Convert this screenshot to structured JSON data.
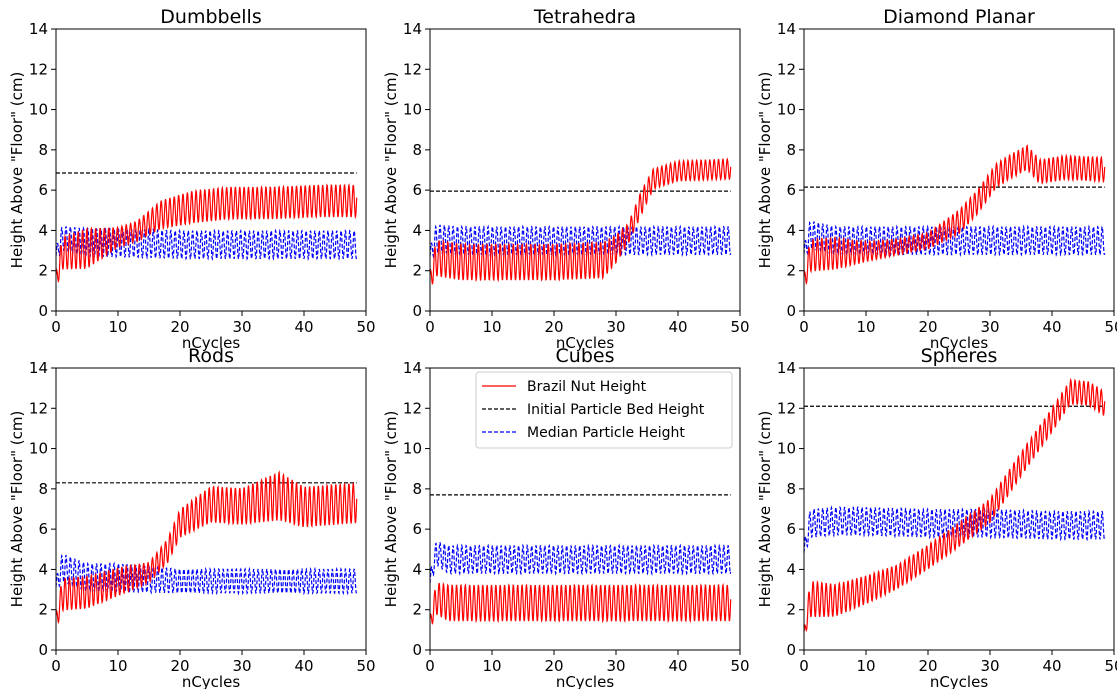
{
  "legend": {
    "entries": [
      {
        "label": "Brazil Nut Height",
        "color": "#ff0000",
        "dash": "solid"
      },
      {
        "label": "Initial Particle Bed Height",
        "color": "#000000",
        "dash": "dashed"
      },
      {
        "label": "Median Particle Height",
        "color": "#0000ff",
        "dash": "dashed"
      }
    ],
    "location": "top-right of Cubes panel"
  },
  "chart_data": [
    {
      "type": "line",
      "title": "Dumbbells",
      "xlabel": "nCycles",
      "ylabel": "Height Above \"Floor\" (cm)",
      "xlim": [
        0,
        50
      ],
      "ylim": [
        0,
        14
      ],
      "xticks": [
        0,
        10,
        20,
        30,
        40,
        50
      ],
      "yticks": [
        0,
        2,
        4,
        6,
        8,
        10,
        12,
        14
      ],
      "series": [
        {
          "name": "Initial Particle Bed Height",
          "color": "#000000",
          "dash": "dashed",
          "x": [
            0,
            48.5
          ],
          "y": [
            6.85,
            6.85
          ]
        },
        {
          "name": "Median Particle Height",
          "color": "#0000ff",
          "dash": "dashed",
          "x": [
            0,
            1,
            5,
            10,
            20,
            30,
            40,
            48.5
          ],
          "y": [
            2.6,
            3.2,
            2.9,
            2.9,
            2.8,
            2.8,
            2.8,
            2.8
          ],
          "amplitude": [
            0.3,
            0.6,
            0.7,
            0.7,
            0.7,
            0.7,
            0.7,
            0.7
          ]
        },
        {
          "name": "Brazil Nut Height",
          "color": "#ff0000",
          "dash": "solid",
          "x": [
            0,
            1,
            5,
            10,
            13,
            17,
            22,
            28,
            35,
            42,
            48.5
          ],
          "y": [
            1.2,
            2.3,
            2.4,
            3.3,
            3.6,
            4.3,
            4.6,
            4.8,
            4.8,
            4.9,
            4.9
          ],
          "amplitude": [
            0.4,
            0.8,
            1.0,
            0.5,
            0.5,
            0.7,
            0.8,
            0.8,
            0.8,
            0.8,
            0.8
          ]
        }
      ]
    },
    {
      "type": "line",
      "title": "Tetrahedra",
      "xlabel": "nCycles",
      "ylabel": "Height Above \"Floor\" (cm)",
      "xlim": [
        0,
        50
      ],
      "ylim": [
        0,
        14
      ],
      "xticks": [
        0,
        10,
        20,
        30,
        40,
        50
      ],
      "yticks": [
        0,
        2,
        4,
        6,
        8,
        10,
        12,
        14
      ],
      "series": [
        {
          "name": "Initial Particle Bed Height",
          "color": "#000000",
          "dash": "dashed",
          "x": [
            0,
            48.5
          ],
          "y": [
            5.95,
            5.95
          ]
        },
        {
          "name": "Median Particle Height",
          "color": "#0000ff",
          "dash": "dashed",
          "x": [
            0,
            1,
            5,
            10,
            20,
            30,
            40,
            48.5
          ],
          "y": [
            2.6,
            3.1,
            3.0,
            3.0,
            3.0,
            3.0,
            3.0,
            3.0
          ],
          "amplitude": [
            0.3,
            0.7,
            0.7,
            0.7,
            0.7,
            0.7,
            0.7,
            0.7
          ]
        },
        {
          "name": "Brazil Nut Height",
          "color": "#ff0000",
          "dash": "solid",
          "x": [
            0,
            1,
            5,
            10,
            20,
            28,
            30,
            32,
            34,
            36,
            40,
            48.5
          ],
          "y": [
            1.2,
            2.0,
            1.8,
            1.8,
            1.8,
            1.9,
            2.6,
            3.5,
            4.9,
            6.2,
            6.6,
            6.7
          ],
          "amplitude": [
            0.4,
            0.9,
            0.9,
            0.9,
            0.9,
            0.9,
            0.7,
            0.5,
            0.6,
            0.5,
            0.5,
            0.5
          ]
        }
      ]
    },
    {
      "type": "line",
      "title": "Diamond Planar",
      "xlabel": "nCycles",
      "ylabel": "Height Above \"Floor\" (cm)",
      "xlim": [
        0,
        50
      ],
      "ylim": [
        0,
        14
      ],
      "xticks": [
        0,
        10,
        20,
        30,
        40,
        50
      ],
      "yticks": [
        0,
        2,
        4,
        6,
        8,
        10,
        12,
        14
      ],
      "series": [
        {
          "name": "Initial Particle Bed Height",
          "color": "#000000",
          "dash": "dashed",
          "x": [
            0,
            48.5
          ],
          "y": [
            6.15,
            6.15
          ]
        },
        {
          "name": "Median Particle Height",
          "color": "#0000ff",
          "dash": "dashed",
          "x": [
            0,
            1,
            5,
            10,
            20,
            30,
            40,
            48.5
          ],
          "y": [
            2.7,
            3.3,
            3.0,
            3.0,
            3.0,
            3.0,
            3.0,
            3.0
          ],
          "amplitude": [
            0.3,
            0.7,
            0.7,
            0.7,
            0.7,
            0.7,
            0.7,
            0.7
          ]
        },
        {
          "name": "Brazil Nut Height",
          "color": "#ff0000",
          "dash": "solid",
          "x": [
            0,
            1,
            5,
            10,
            15,
            20,
            25,
            28,
            31,
            33,
            36,
            38,
            42,
            48.5
          ],
          "y": [
            1.1,
            2.2,
            2.3,
            2.6,
            2.9,
            3.2,
            4.0,
            5.0,
            6.3,
            6.7,
            7.2,
            6.5,
            6.7,
            6.6
          ],
          "amplitude": [
            0.4,
            0.8,
            0.8,
            0.5,
            0.4,
            0.4,
            0.6,
            0.6,
            0.6,
            0.6,
            0.6,
            0.6,
            0.6,
            0.6
          ]
        }
      ]
    },
    {
      "type": "line",
      "title": "Rods",
      "xlabel": "nCycles",
      "ylabel": "Height Above \"Floor\" (cm)",
      "xlim": [
        0,
        50
      ],
      "ylim": [
        0,
        14
      ],
      "xticks": [
        0,
        10,
        20,
        30,
        40,
        50
      ],
      "yticks": [
        0,
        2,
        4,
        6,
        8,
        10,
        12,
        14
      ],
      "series": [
        {
          "name": "Initial Particle Bed Height",
          "color": "#000000",
          "dash": "dashed",
          "x": [
            0,
            48.5
          ],
          "y": [
            8.3,
            8.3
          ]
        },
        {
          "name": "Median Particle Height",
          "color": "#0000ff",
          "dash": "dashed",
          "x": [
            0,
            1,
            5,
            10,
            20,
            30,
            40,
            48.5
          ],
          "y": [
            3.0,
            3.6,
            3.1,
            3.1,
            3.0,
            3.0,
            3.0,
            3.0
          ],
          "amplitude": [
            0.3,
            0.7,
            0.7,
            0.7,
            0.6,
            0.6,
            0.6,
            0.6
          ]
        },
        {
          "name": "Brazil Nut Height",
          "color": "#ff0000",
          "dash": "solid",
          "x": [
            0,
            1,
            5,
            10,
            15,
            18,
            20,
            25,
            30,
            36,
            40,
            48.5
          ],
          "y": [
            1.1,
            2.2,
            2.3,
            2.9,
            3.5,
            4.5,
            5.8,
            6.6,
            6.5,
            6.8,
            6.4,
            6.6
          ],
          "amplitude": [
            0.4,
            0.8,
            0.8,
            0.7,
            0.5,
            0.6,
            0.7,
            0.9,
            0.9,
            1.2,
            1.0,
            1.0
          ]
        }
      ]
    },
    {
      "type": "line",
      "title": "Cubes",
      "xlabel": "nCycles",
      "ylabel": "Height Above \"Floor\" (cm)",
      "xlim": [
        0,
        50
      ],
      "ylim": [
        0,
        14
      ],
      "xticks": [
        0,
        10,
        20,
        30,
        40,
        50
      ],
      "yticks": [
        0,
        2,
        4,
        6,
        8,
        10,
        12,
        14
      ],
      "series": [
        {
          "name": "Initial Particle Bed Height",
          "color": "#000000",
          "dash": "dashed",
          "x": [
            0,
            48.5
          ],
          "y": [
            7.7,
            7.7
          ]
        },
        {
          "name": "Median Particle Height",
          "color": "#0000ff",
          "dash": "dashed",
          "x": [
            0,
            1,
            3,
            10,
            20,
            30,
            40,
            48.5
          ],
          "y": [
            3.2,
            4.4,
            4.0,
            4.0,
            4.0,
            4.0,
            4.0,
            4.0
          ],
          "amplitude": [
            0.3,
            0.6,
            0.7,
            0.7,
            0.7,
            0.7,
            0.7,
            0.7
          ]
        },
        {
          "name": "Brazil Nut Height",
          "color": "#ff0000",
          "dash": "solid",
          "x": [
            0,
            1,
            3,
            10,
            20,
            30,
            40,
            48.5
          ],
          "y": [
            1.1,
            2.0,
            1.7,
            1.7,
            1.7,
            1.7,
            1.7,
            1.7
          ],
          "amplitude": [
            0.3,
            0.8,
            0.9,
            0.9,
            0.9,
            0.9,
            0.9,
            0.9
          ]
        }
      ]
    },
    {
      "type": "line",
      "title": "Spheres",
      "xlabel": "nCycles",
      "ylabel": "Height Above \"Floor\" (cm)",
      "xlim": [
        0,
        50
      ],
      "ylim": [
        0,
        14
      ],
      "xticks": [
        0,
        10,
        20,
        30,
        40,
        50
      ],
      "yticks": [
        0,
        2,
        4,
        6,
        8,
        10,
        12,
        14
      ],
      "series": [
        {
          "name": "Initial Particle Bed Height",
          "color": "#000000",
          "dash": "dashed",
          "x": [
            0,
            48.5
          ],
          "y": [
            12.1,
            12.1
          ]
        },
        {
          "name": "Median Particle Height",
          "color": "#0000ff",
          "dash": "dashed",
          "x": [
            0,
            1,
            5,
            10,
            20,
            30,
            40,
            48.5
          ],
          "y": [
            4.7,
            5.8,
            5.9,
            5.9,
            5.8,
            5.8,
            5.7,
            5.7
          ],
          "amplitude": [
            0.3,
            0.7,
            0.7,
            0.7,
            0.7,
            0.7,
            0.7,
            0.7
          ]
        },
        {
          "name": "Brazil Nut Height",
          "color": "#ff0000",
          "dash": "solid",
          "x": [
            0,
            1,
            5,
            10,
            15,
            20,
            25,
            30,
            35,
            40,
            43,
            46,
            48.5
          ],
          "y": [
            0.6,
            1.9,
            1.9,
            2.5,
            3.2,
            4.2,
            5.3,
            6.5,
            8.8,
            11.0,
            12.4,
            12.3,
            11.8
          ],
          "amplitude": [
            0.2,
            0.9,
            0.8,
            0.7,
            0.6,
            0.6,
            0.6,
            0.6,
            0.6,
            0.6,
            0.6,
            0.6,
            0.6
          ]
        }
      ]
    }
  ]
}
